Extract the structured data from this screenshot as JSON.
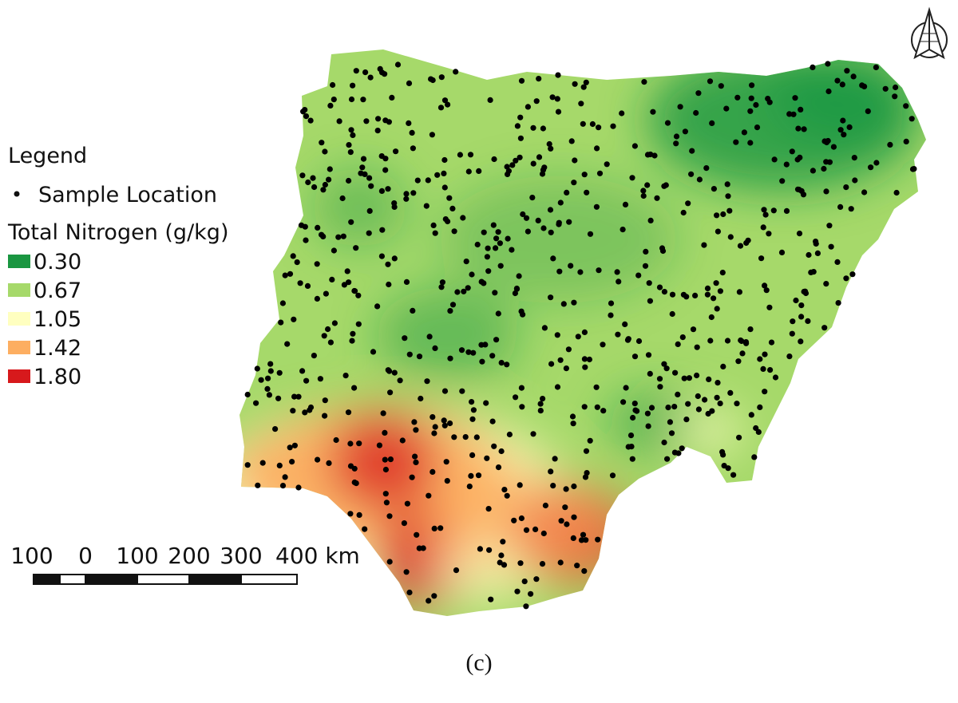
{
  "legend": {
    "title": "Legend",
    "sample_label": "Sample Location",
    "scale_title": "Total Nitrogen (g/kg)",
    "classes": [
      {
        "label": "0.30",
        "color": "#1a9641"
      },
      {
        "label": "0.67",
        "color": "#a6d96a"
      },
      {
        "label": "1.05",
        "color": "#ffffc0"
      },
      {
        "label": "1.42",
        "color": "#fdae61"
      },
      {
        "label": "1.80",
        "color": "#d7191c"
      }
    ]
  },
  "scale_bar": {
    "labels": [
      "100",
      "0",
      "100",
      "200",
      "300",
      "400 km"
    ]
  },
  "caption": "(c)"
}
